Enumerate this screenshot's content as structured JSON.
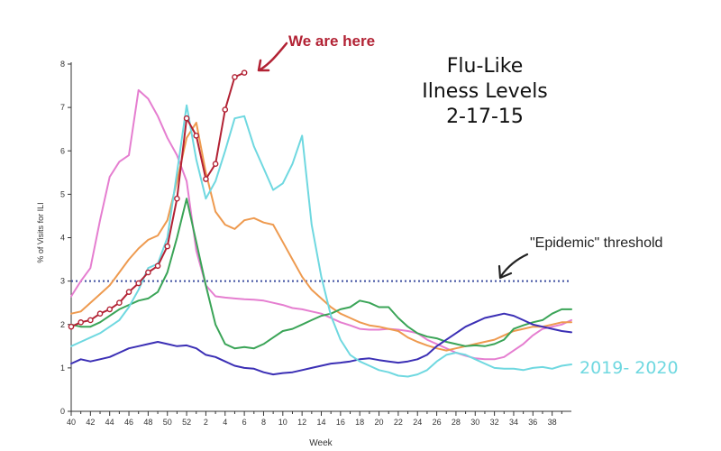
{
  "chart_data": {
    "type": "line",
    "title_lines": [
      "Flu-Like",
      "Ilness Levels",
      "2-17-15"
    ],
    "xlabel": "Week",
    "ylabel": "% of Visits for ILI",
    "y_ticks": [
      0,
      1,
      2,
      3,
      4,
      5,
      6,
      7,
      8
    ],
    "ylim": [
      0,
      8
    ],
    "x_tick_labels": [
      "40",
      "42",
      "44",
      "46",
      "48",
      "50",
      "52",
      "2",
      "4",
      "6",
      "8",
      "10",
      "12",
      "14",
      "16",
      "18",
      "20",
      "22",
      "24",
      "26",
      "28",
      "30",
      "32",
      "34",
      "36",
      "38"
    ],
    "season_weeks": 52,
    "grid": false,
    "threshold": {
      "value": 3.0,
      "label": "\"Epidemic\" threshold",
      "color": "#3f4fa0"
    },
    "annotations": {
      "we_are_here": "We are here",
      "season_label": "2019- 2020"
    },
    "series": [
      {
        "color": "#e57ed0",
        "values": [
          2.65,
          3.0,
          3.3,
          4.4,
          5.4,
          5.75,
          5.9,
          7.4,
          7.2,
          6.8,
          6.3,
          5.9,
          5.3,
          3.7,
          2.9,
          2.65,
          2.62,
          2.6,
          2.58,
          2.57,
          2.55,
          2.5,
          2.45,
          2.38,
          2.35,
          2.3,
          2.25,
          2.15,
          2.05,
          1.98,
          1.9,
          1.88,
          1.88,
          1.9,
          1.88,
          1.85,
          1.8,
          1.65,
          1.55,
          1.45,
          1.35,
          1.28,
          1.22,
          1.2,
          1.2,
          1.25,
          1.4,
          1.55,
          1.75,
          1.9,
          1.95,
          2.0,
          2.1
        ]
      },
      {
        "color": "#ee9a4f",
        "values": [
          2.25,
          2.3,
          2.5,
          2.7,
          2.9,
          3.2,
          3.5,
          3.75,
          3.95,
          4.05,
          4.4,
          5.3,
          6.3,
          6.65,
          5.5,
          4.6,
          4.3,
          4.2,
          4.4,
          4.45,
          4.35,
          4.3,
          3.9,
          3.5,
          3.1,
          2.8,
          2.6,
          2.4,
          2.25,
          2.15,
          2.05,
          1.98,
          1.95,
          1.9,
          1.85,
          1.7,
          1.6,
          1.52,
          1.45,
          1.4,
          1.45,
          1.5,
          1.55,
          1.6,
          1.65,
          1.75,
          1.85,
          1.9,
          1.95,
          1.95,
          2.0,
          2.05,
          2.05
        ]
      },
      {
        "color": "#3aa457",
        "values": [
          2.0,
          1.95,
          1.95,
          2.05,
          2.2,
          2.35,
          2.45,
          2.55,
          2.6,
          2.75,
          3.2,
          4.0,
          4.9,
          3.9,
          2.9,
          2.0,
          1.55,
          1.45,
          1.48,
          1.45,
          1.55,
          1.7,
          1.85,
          1.9,
          2.0,
          2.1,
          2.2,
          2.25,
          2.35,
          2.4,
          2.55,
          2.5,
          2.4,
          2.4,
          2.15,
          1.95,
          1.8,
          1.72,
          1.68,
          1.6,
          1.55,
          1.5,
          1.52,
          1.5,
          1.55,
          1.65,
          1.9,
          1.98,
          2.05,
          2.1,
          2.25,
          2.35,
          2.35
        ]
      },
      {
        "color": "#3b2fb5",
        "values": [
          1.1,
          1.2,
          1.15,
          1.2,
          1.25,
          1.35,
          1.45,
          1.5,
          1.55,
          1.6,
          1.55,
          1.5,
          1.52,
          1.45,
          1.3,
          1.25,
          1.15,
          1.05,
          1.0,
          0.98,
          0.9,
          0.85,
          0.88,
          0.9,
          0.95,
          1.0,
          1.05,
          1.1,
          1.12,
          1.15,
          1.2,
          1.22,
          1.18,
          1.15,
          1.12,
          1.15,
          1.2,
          1.3,
          1.5,
          1.65,
          1.8,
          1.95,
          2.05,
          2.15,
          2.2,
          2.25,
          2.2,
          2.1,
          2.0,
          1.95,
          1.9,
          1.85,
          1.82
        ]
      },
      {
        "name": "2019- 2020",
        "color": "#6fd8e0",
        "values": [
          1.5,
          1.6,
          1.7,
          1.8,
          1.95,
          2.1,
          2.4,
          2.8,
          3.3,
          3.4,
          4.0,
          5.5,
          7.05,
          5.8,
          4.9,
          5.3,
          6.0,
          6.75,
          6.8,
          6.1,
          5.6,
          5.1,
          5.25,
          5.7,
          6.35,
          4.3,
          3.1,
          2.2,
          1.65,
          1.3,
          1.15,
          1.05,
          0.95,
          0.9,
          0.82,
          0.8,
          0.85,
          0.95,
          1.15,
          1.3,
          1.35,
          1.3,
          1.2,
          1.1,
          1.0,
          0.98,
          0.98,
          0.95,
          1.0,
          1.02,
          0.98,
          1.05,
          1.08
        ]
      },
      {
        "color": "#b22234",
        "markers": true,
        "values": [
          1.95,
          2.05,
          2.1,
          2.25,
          2.35,
          2.5,
          2.75,
          2.95,
          3.2,
          3.35,
          3.8,
          4.9,
          6.75,
          6.35,
          5.35,
          5.7,
          6.95,
          7.7,
          7.8
        ]
      }
    ]
  }
}
